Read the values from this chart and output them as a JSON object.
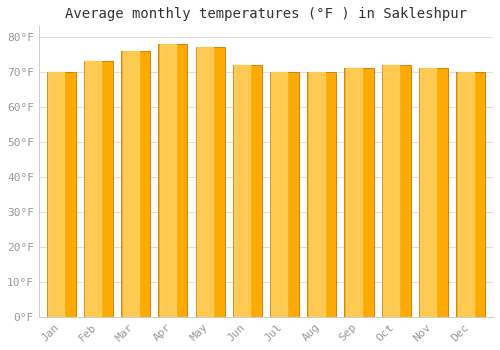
{
  "title": "Average monthly temperatures (°F ) in Sakleshpur",
  "months": [
    "Jan",
    "Feb",
    "Mar",
    "Apr",
    "May",
    "Jun",
    "Jul",
    "Aug",
    "Sep",
    "Oct",
    "Nov",
    "Dec"
  ],
  "values": [
    70,
    73,
    76,
    78,
    77,
    72,
    70,
    70,
    71,
    72,
    71,
    70
  ],
  "bar_color_main": "#FFAA00",
  "bar_color_light": "#FFD060",
  "bar_edge_color": "#CC7700",
  "background_color": "#FFFFFF",
  "plot_bg_color": "#FFFFFF",
  "grid_color": "#DDDDDD",
  "ylim": [
    0,
    83
  ],
  "yticks": [
    0,
    10,
    20,
    30,
    40,
    50,
    60,
    70,
    80
  ],
  "ytick_labels": [
    "0°F",
    "10°F",
    "20°F",
    "30°F",
    "40°F",
    "50°F",
    "60°F",
    "70°F",
    "80°F"
  ],
  "title_fontsize": 10,
  "tick_fontsize": 8,
  "font_family": "monospace",
  "tick_color": "#999999",
  "title_color": "#333333"
}
